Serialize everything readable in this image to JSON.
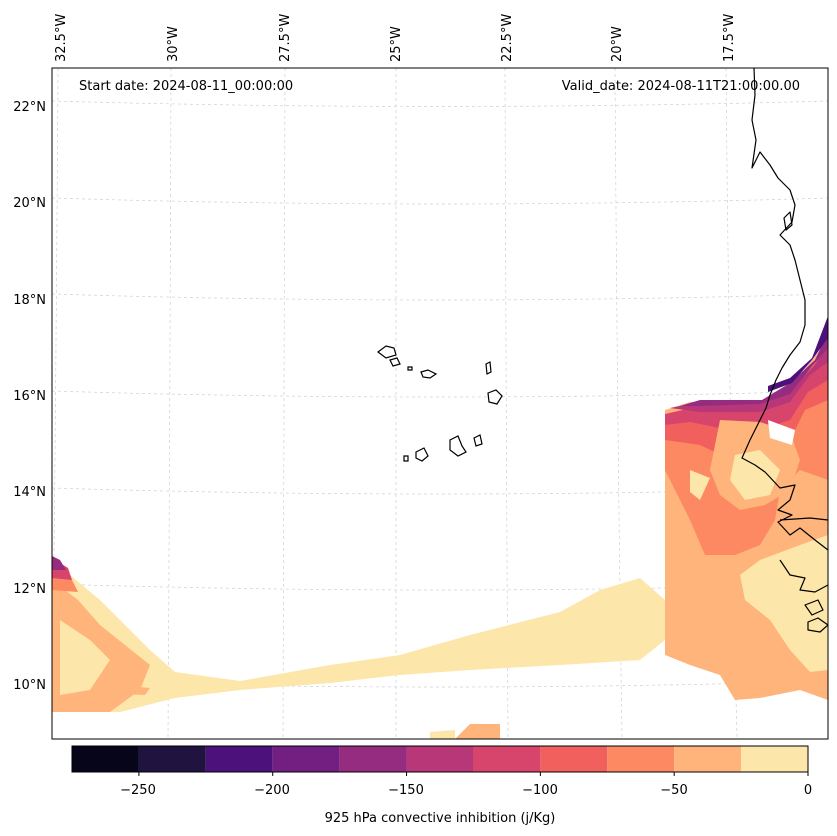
{
  "map": {
    "start_date": "Start date: 2024-08-11_00:00:00",
    "valid_date": "Valid_date: 2024-08-11T21:00:00.00",
    "lon_labels": [
      "32.5°W",
      "30°W",
      "27.5°W",
      "25°W",
      "22.5°W",
      "20°W",
      "17.5°W"
    ],
    "lat_labels": [
      "22°N",
      "20°N",
      "18°N",
      "16°N",
      "14°N",
      "12°N",
      "10°N"
    ]
  },
  "colorbar": {
    "label": "925 hPa convective inhibition (j/Kg)",
    "ticks": [
      "−250",
      "−200",
      "−150",
      "−100",
      "−50",
      "0"
    ],
    "levels": [
      -275,
      -250,
      -225,
      -200,
      -175,
      -150,
      -125,
      -100,
      -75,
      -50,
      -25,
      0
    ],
    "colors": [
      "#06051a",
      "#201340",
      "#4c117a",
      "#721f81",
      "#962c80",
      "#b73779",
      "#d8456c",
      "#f1605d",
      "#fc8961",
      "#feb47b",
      "#fde6a9"
    ]
  },
  "colors": {
    "frame": "#000000",
    "gridline": "#cfcfcf"
  }
}
